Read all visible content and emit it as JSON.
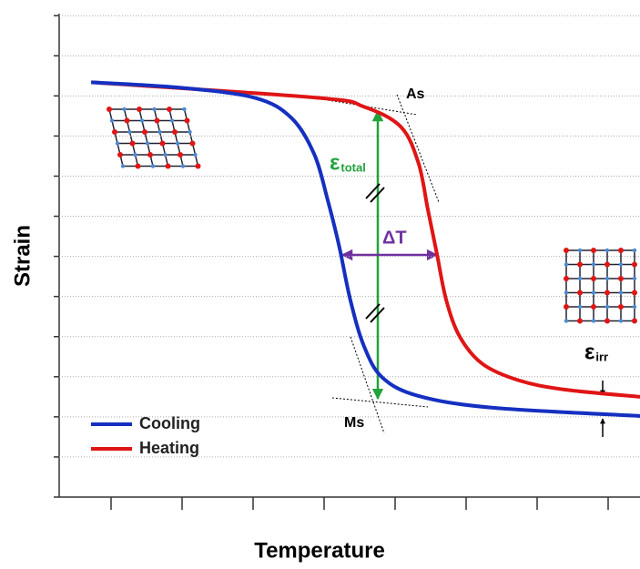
{
  "chart_data": {
    "type": "line",
    "x_label": "Temperature",
    "y_label": "Strain",
    "xlim": [
      0.25,
      8.45
    ],
    "ylim": [
      0,
      12.05
    ],
    "xticks": [
      1,
      2,
      3,
      4,
      5,
      6,
      7,
      8
    ],
    "yticks": [
      0,
      1,
      2,
      3,
      4,
      5,
      6,
      7,
      8,
      9,
      10,
      11,
      12
    ],
    "grid": true,
    "legend": "lower left",
    "series": [
      {
        "name": "Cooling",
        "color": "#1530c0",
        "x": [
          0.72,
          2.0,
          3.03,
          3.54,
          3.86,
          4.05,
          4.21,
          4.37,
          4.56,
          4.82,
          5.33,
          6.36,
          8.45
        ],
        "values": [
          10.34,
          10.2,
          9.95,
          9.45,
          8.55,
          7.41,
          6.27,
          4.91,
          3.77,
          2.98,
          2.52,
          2.23,
          2.02
        ]
      },
      {
        "name": "Heating",
        "color": "#e01515",
        "x": [
          0.72,
          3.92,
          4.56,
          5.08,
          5.33,
          5.46,
          5.59,
          5.72,
          5.91,
          6.23,
          6.74,
          7.38,
          8.45
        ],
        "values": [
          10.34,
          9.95,
          9.73,
          9.23,
          8.32,
          7.18,
          6.05,
          4.91,
          4.0,
          3.32,
          2.91,
          2.68,
          2.5
        ]
      }
    ],
    "annotations": [
      {
        "text": "As"
      },
      {
        "text": "Ms"
      },
      {
        "text": "ΔT"
      },
      {
        "text": "ε",
        "subscript": "total"
      },
      {
        "text": "ε",
        "subscript": "irr"
      }
    ]
  }
}
